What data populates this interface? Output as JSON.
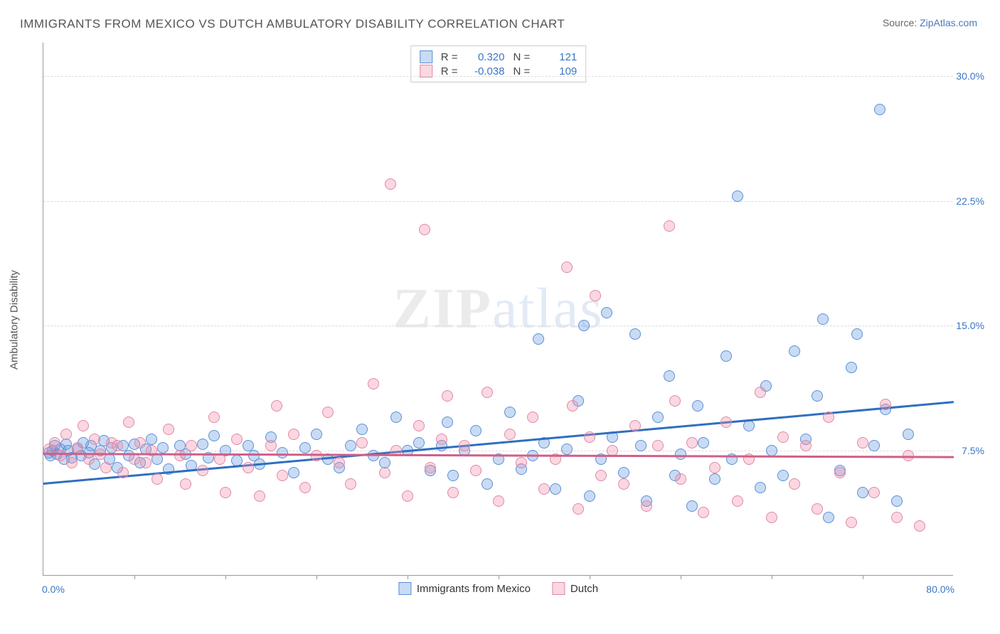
{
  "title": "IMMIGRANTS FROM MEXICO VS DUTCH AMBULATORY DISABILITY CORRELATION CHART",
  "source": {
    "label": "Source:",
    "link_text": "ZipAtlas.com"
  },
  "ylabel": "Ambulatory Disability",
  "watermark": {
    "bold": "ZIP",
    "rest": "atlas"
  },
  "axes": {
    "xlim": [
      0,
      80
    ],
    "ylim": [
      0,
      32
    ],
    "xmin_label": "0.0%",
    "xmax_label": "80.0%",
    "y_ticks": [
      {
        "v": 7.5,
        "label": "7.5%"
      },
      {
        "v": 15.0,
        "label": "15.0%"
      },
      {
        "v": 22.5,
        "label": "22.5%"
      },
      {
        "v": 30.0,
        "label": "30.0%"
      }
    ],
    "x_tickcount": 10,
    "grid_color": "#dcdcdc"
  },
  "style": {
    "background_color": "#ffffff",
    "watermark_color": "rgba(120,120,120,0.15)",
    "text_color": "#555555"
  },
  "series": [
    {
      "id": "mexico",
      "label": "Immigrants from Mexico",
      "fill": "rgba(99,151,224,0.35)",
      "stroke": "#5b8fd6",
      "line_color": "#2f6fc0",
      "marker_radius": 8,
      "line_width": 2.5,
      "R": "0.320",
      "N": "121",
      "trend": {
        "x1": 0,
        "y1": 5.6,
        "x2": 80,
        "y2": 10.5
      },
      "points": [
        [
          0.5,
          7.4
        ],
        [
          0.6,
          7.2
        ],
        [
          0.8,
          7.5
        ],
        [
          1.0,
          7.8
        ],
        [
          1.2,
          7.3
        ],
        [
          1.5,
          7.6
        ],
        [
          1.8,
          7.0
        ],
        [
          2.0,
          7.9
        ],
        [
          2.2,
          7.5
        ],
        [
          2.5,
          7.1
        ],
        [
          3.0,
          7.6
        ],
        [
          3.3,
          7.2
        ],
        [
          3.5,
          8.0
        ],
        [
          4.0,
          7.4
        ],
        [
          4.2,
          7.8
        ],
        [
          4.5,
          6.7
        ],
        [
          5.0,
          7.5
        ],
        [
          5.3,
          8.1
        ],
        [
          5.8,
          7.0
        ],
        [
          6.0,
          7.7
        ],
        [
          6.5,
          6.5
        ],
        [
          7.0,
          7.8
        ],
        [
          7.5,
          7.2
        ],
        [
          8.0,
          7.9
        ],
        [
          8.5,
          6.8
        ],
        [
          9.0,
          7.6
        ],
        [
          9.5,
          8.2
        ],
        [
          10,
          7.0
        ],
        [
          10.5,
          7.7
        ],
        [
          11,
          6.4
        ],
        [
          12,
          7.8
        ],
        [
          12.5,
          7.3
        ],
        [
          13,
          6.6
        ],
        [
          14,
          7.9
        ],
        [
          14.5,
          7.1
        ],
        [
          15,
          8.4
        ],
        [
          16,
          7.5
        ],
        [
          17,
          6.9
        ],
        [
          18,
          7.8
        ],
        [
          18.5,
          7.2
        ],
        [
          19,
          6.7
        ],
        [
          20,
          8.3
        ],
        [
          21,
          7.4
        ],
        [
          22,
          6.2
        ],
        [
          23,
          7.7
        ],
        [
          24,
          8.5
        ],
        [
          25,
          7.0
        ],
        [
          26,
          6.5
        ],
        [
          27,
          7.8
        ],
        [
          28,
          8.8
        ],
        [
          29,
          7.2
        ],
        [
          30,
          6.8
        ],
        [
          31,
          9.5
        ],
        [
          32,
          7.5
        ],
        [
          33,
          8.0
        ],
        [
          34,
          6.3
        ],
        [
          35,
          7.8
        ],
        [
          35.5,
          9.2
        ],
        [
          36,
          6.0
        ],
        [
          37,
          7.5
        ],
        [
          38,
          8.7
        ],
        [
          39,
          5.5
        ],
        [
          40,
          7.0
        ],
        [
          41,
          9.8
        ],
        [
          42,
          6.4
        ],
        [
          43,
          7.2
        ],
        [
          43.5,
          14.2
        ],
        [
          44,
          8.0
        ],
        [
          45,
          5.2
        ],
        [
          46,
          7.6
        ],
        [
          47,
          10.5
        ],
        [
          47.5,
          15.0
        ],
        [
          48,
          4.8
        ],
        [
          49,
          7.0
        ],
        [
          49.5,
          15.8
        ],
        [
          50,
          8.3
        ],
        [
          51,
          6.2
        ],
        [
          52,
          14.5
        ],
        [
          52.5,
          7.8
        ],
        [
          53,
          4.5
        ],
        [
          54,
          9.5
        ],
        [
          55,
          12.0
        ],
        [
          55.5,
          6.0
        ],
        [
          56,
          7.3
        ],
        [
          57,
          4.2
        ],
        [
          57.5,
          10.2
        ],
        [
          58,
          8.0
        ],
        [
          59,
          5.8
        ],
        [
          60,
          13.2
        ],
        [
          60.5,
          7.0
        ],
        [
          61,
          22.8
        ],
        [
          62,
          9.0
        ],
        [
          63,
          5.3
        ],
        [
          63.5,
          11.4
        ],
        [
          64,
          7.5
        ],
        [
          65,
          6.0
        ],
        [
          66,
          13.5
        ],
        [
          67,
          8.2
        ],
        [
          68,
          10.8
        ],
        [
          68.5,
          15.4
        ],
        [
          69,
          3.5
        ],
        [
          70,
          6.3
        ],
        [
          71,
          12.5
        ],
        [
          71.5,
          14.5
        ],
        [
          72,
          5.0
        ],
        [
          73,
          7.8
        ],
        [
          73.5,
          28.0
        ],
        [
          74,
          10.0
        ],
        [
          75,
          4.5
        ],
        [
          76,
          8.5
        ]
      ]
    },
    {
      "id": "dutch",
      "label": "Dutch",
      "fill": "rgba(240,140,170,0.35)",
      "stroke": "#e089a5",
      "line_color": "#d05f8a",
      "marker_radius": 8,
      "line_width": 2.5,
      "R": "-0.038",
      "N": "109",
      "trend": {
        "x1": 0,
        "y1": 7.4,
        "x2": 80,
        "y2": 7.2
      },
      "points": [
        [
          0.5,
          7.6
        ],
        [
          1,
          8.0
        ],
        [
          1.5,
          7.2
        ],
        [
          2,
          8.5
        ],
        [
          2.5,
          6.8
        ],
        [
          3,
          7.7
        ],
        [
          3.5,
          9.0
        ],
        [
          4,
          7.0
        ],
        [
          4.5,
          8.2
        ],
        [
          5,
          7.3
        ],
        [
          5.5,
          6.5
        ],
        [
          6,
          8.0
        ],
        [
          6.5,
          7.8
        ],
        [
          7,
          6.2
        ],
        [
          7.5,
          9.2
        ],
        [
          8,
          7.0
        ],
        [
          8.5,
          8.0
        ],
        [
          9,
          6.8
        ],
        [
          9.5,
          7.5
        ],
        [
          10,
          5.8
        ],
        [
          11,
          8.8
        ],
        [
          12,
          7.2
        ],
        [
          12.5,
          5.5
        ],
        [
          13,
          7.8
        ],
        [
          14,
          6.3
        ],
        [
          15,
          9.5
        ],
        [
          15.5,
          7.0
        ],
        [
          16,
          5.0
        ],
        [
          17,
          8.2
        ],
        [
          18,
          6.5
        ],
        [
          19,
          4.8
        ],
        [
          20,
          7.8
        ],
        [
          20.5,
          10.2
        ],
        [
          21,
          6.0
        ],
        [
          22,
          8.5
        ],
        [
          23,
          5.3
        ],
        [
          24,
          7.2
        ],
        [
          25,
          9.8
        ],
        [
          26,
          6.8
        ],
        [
          27,
          5.5
        ],
        [
          28,
          8.0
        ],
        [
          29,
          11.5
        ],
        [
          30,
          6.2
        ],
        [
          30.5,
          23.5
        ],
        [
          31,
          7.5
        ],
        [
          32,
          4.8
        ],
        [
          33,
          9.0
        ],
        [
          33.5,
          20.8
        ],
        [
          34,
          6.5
        ],
        [
          35,
          8.2
        ],
        [
          35.5,
          10.8
        ],
        [
          36,
          5.0
        ],
        [
          37,
          7.8
        ],
        [
          38,
          6.3
        ],
        [
          39,
          11.0
        ],
        [
          40,
          4.5
        ],
        [
          41,
          8.5
        ],
        [
          42,
          6.8
        ],
        [
          43,
          9.5
        ],
        [
          44,
          5.2
        ],
        [
          45,
          7.0
        ],
        [
          46,
          18.5
        ],
        [
          46.5,
          10.2
        ],
        [
          47,
          4.0
        ],
        [
          48,
          8.3
        ],
        [
          48.5,
          16.8
        ],
        [
          49,
          6.0
        ],
        [
          50,
          7.5
        ],
        [
          51,
          5.5
        ],
        [
          52,
          9.0
        ],
        [
          53,
          4.2
        ],
        [
          54,
          7.8
        ],
        [
          55,
          21.0
        ],
        [
          55.5,
          10.5
        ],
        [
          56,
          5.8
        ],
        [
          57,
          8.0
        ],
        [
          58,
          3.8
        ],
        [
          59,
          6.5
        ],
        [
          60,
          9.2
        ],
        [
          61,
          4.5
        ],
        [
          62,
          7.0
        ],
        [
          63,
          11.0
        ],
        [
          64,
          3.5
        ],
        [
          65,
          8.3
        ],
        [
          66,
          5.5
        ],
        [
          67,
          7.8
        ],
        [
          68,
          4.0
        ],
        [
          69,
          9.5
        ],
        [
          70,
          6.2
        ],
        [
          71,
          3.2
        ],
        [
          72,
          8.0
        ],
        [
          73,
          5.0
        ],
        [
          74,
          10.3
        ],
        [
          75,
          3.5
        ],
        [
          76,
          7.2
        ],
        [
          77,
          3.0
        ]
      ]
    }
  ],
  "stats_labels": {
    "R": "R =",
    "N": "N ="
  },
  "bottom_legend": [
    "Immigrants from Mexico",
    "Dutch"
  ]
}
